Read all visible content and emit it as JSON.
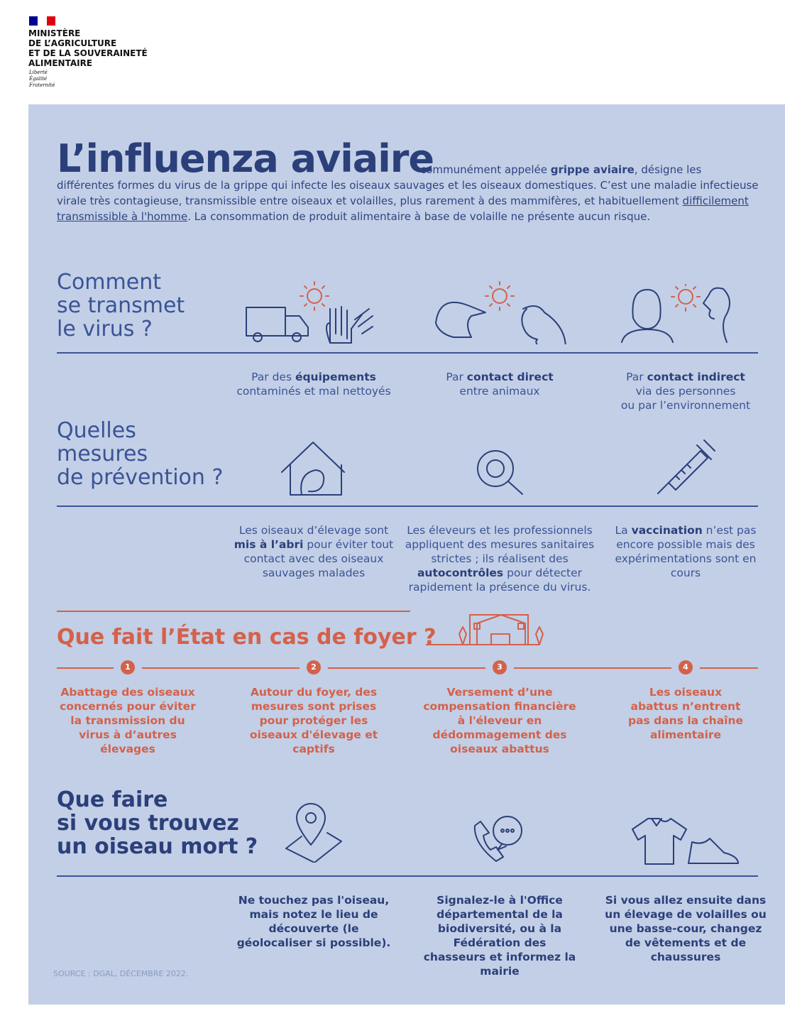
{
  "logo": {
    "name": "MINISTÈRE\nDE L’AGRICULTURE\nET DE LA SOUVERAINETÉ\nALIMENTAIRE",
    "motto": "Liberté\nÉgalité\nFraternité"
  },
  "colors": {
    "background": "#c2cfe6",
    "navy": "#2b3f7a",
    "accent": "#d4614a"
  },
  "title": "L’influenza aviaire",
  "intro": {
    "p1": "communément appelée ",
    "bold": "grippe aviaire",
    "p2": ", désigne les différentes formes du virus de la grippe qui infecte les oiseaux sauvages et les oiseaux domestiques. C’est une maladie infectieuse virale très contagieuse, transmissible entre oiseaux et volailles, plus rarement à des mammifères, et habituellement ",
    "link": "difficilement transmissible à l'homme",
    "p3": ". La consommation de produit alimentaire à base de volaille ne présente aucun risque."
  },
  "transmission": {
    "heading": "Comment\nse transmet\nle virus ?",
    "items": [
      {
        "icon": "truck-gloves-virus-icon",
        "pre": "Par des ",
        "bold": "équipements",
        "post": "contaminés et mal nettoyés"
      },
      {
        "icon": "duck-chicken-virus-icon",
        "pre": "Par ",
        "bold": "contact direct",
        "post": "entre animaux"
      },
      {
        "icon": "person-virus-icon",
        "pre": "Par ",
        "bold": "contact indirect",
        "post": "via des personnes\nou par l’environnement"
      }
    ]
  },
  "prevention": {
    "heading": "Quelles\nmesures\nde prévention ?",
    "items": [
      {
        "icon": "chicken-house-icon",
        "a": "Les oiseaux d’élevage sont ",
        "b": "mis à l’abri",
        "c": " pour éviter tout contact avec des oiseaux sauvages malades"
      },
      {
        "icon": "virus-magnifier-icon",
        "a": "Les éleveurs et les professionnels appliquent des mesures sanitaires strictes ; ils réalisent des ",
        "b": "autocontrôles",
        "c": " pour détecter rapidement la présence du virus."
      },
      {
        "icon": "syringe-icon",
        "a": "La ",
        "b": "vaccination",
        "c": " n’est pas encore possible mais des expérimentations sont en cours"
      }
    ]
  },
  "state": {
    "heading": "Que fait l’État en cas de foyer ?",
    "steps": [
      {
        "n": "1",
        "text": "Abattage des oiseaux concernés pour éviter la transmission du virus à d’autres élevages"
      },
      {
        "n": "2",
        "text": "Autour du foyer, des mesures sont prises pour protéger les oiseaux d'élevage et captifs"
      },
      {
        "n": "3",
        "text": "Versement d’une compensation financière à l'éleveur en dédommagement des oiseaux abattus"
      },
      {
        "n": "4",
        "text": "Les oiseaux abattus n’entrent pas dans la chaîne alimentaire"
      }
    ]
  },
  "dead_bird": {
    "heading": "Que faire\nsi vous trouvez\nun oiseau mort ?",
    "items": [
      {
        "icon": "map-pin-icon",
        "text": "Ne touchez pas l'oiseau, mais notez le lieu de découverte (le géolocaliser si possible)."
      },
      {
        "icon": "phone-call-icon",
        "text": "Signalez-le à l'Office départemental de la biodiversité, ou à la Fédération des chasseurs et informez la mairie"
      },
      {
        "icon": "clothes-shoes-icon",
        "text": "Si vous allez ensuite dans un élevage de volailles ou une basse-cour, changez de vêtements et de chaussures"
      }
    ]
  },
  "source": "SOURCE : DGAL, DÉCEMBRE 2022."
}
